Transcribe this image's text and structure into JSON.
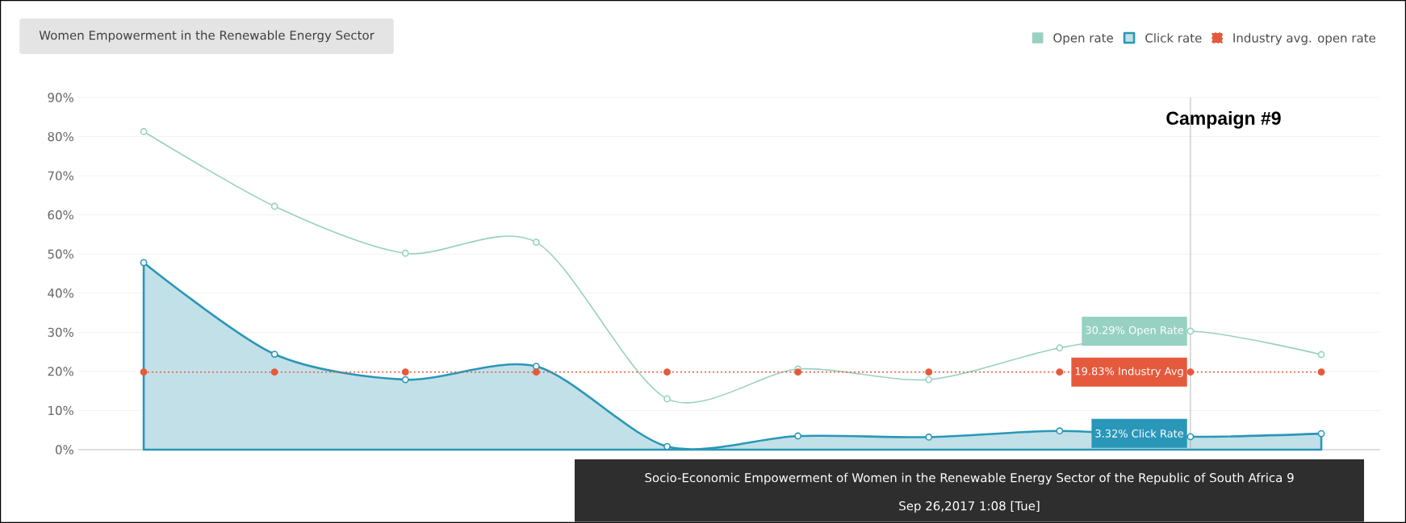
{
  "chart_data": {
    "type": "line",
    "title": "Women Empowerment in the Renewable Energy Sector",
    "categories": [
      null,
      null,
      null,
      null,
      null,
      null,
      null,
      null,
      null,
      null
    ],
    "series": [
      {
        "name": "Open rate",
        "color": "#97d1c1",
        "marker": "circle",
        "values": [
          81.3,
          62.2,
          50.2,
          53.0,
          13.0,
          20.6,
          17.9,
          26.0,
          30.29,
          24.3
        ],
        "value_labels": [
          null,
          null,
          null,
          null,
          null,
          null,
          null,
          null,
          "30.29% Open Rate",
          null
        ]
      },
      {
        "name": "Click rate",
        "type": "area",
        "color": "#2a97b8",
        "marker": "circle",
        "values": [
          47.8,
          24.4,
          17.9,
          21.3,
          0.8,
          3.5,
          3.2,
          4.8,
          3.32,
          4.1
        ],
        "value_labels": [
          null,
          null,
          null,
          null,
          null,
          null,
          null,
          null,
          "3.32% Click Rate",
          null
        ]
      },
      {
        "name": "Industry avg. open rate",
        "color": "#e55a3c",
        "marker": "circle",
        "line_style": "dotted",
        "values": [
          19.83,
          19.83,
          19.83,
          19.83,
          19.83,
          19.83,
          19.83,
          19.83,
          19.83,
          19.83
        ],
        "value_labels": [
          null,
          null,
          null,
          null,
          null,
          null,
          null,
          null,
          "19.83% Industry Avg",
          null
        ]
      }
    ],
    "ylim": [
      0,
      90
    ],
    "yticks": [
      {
        "value": 0,
        "label": "0%"
      },
      {
        "value": 10,
        "label": "10%"
      },
      {
        "value": 20,
        "label": "20%"
      },
      {
        "value": 30,
        "label": "30%"
      },
      {
        "value": 40,
        "label": "40%"
      },
      {
        "value": 50,
        "label": "50%"
      },
      {
        "value": 60,
        "label": "60%"
      },
      {
        "value": 70,
        "label": "70%"
      },
      {
        "value": 80,
        "label": "80%"
      },
      {
        "value": 90,
        "label": "90%"
      }
    ],
    "grid": "y",
    "legend": "top right",
    "annotations": [
      "Campaign #9",
      "Socio-Economic Empowerment of Women in the Renewable Energy Sector of the Republic of South Africa 9",
      "Sep 26,2017 1:08 [Tue]"
    ]
  }
}
